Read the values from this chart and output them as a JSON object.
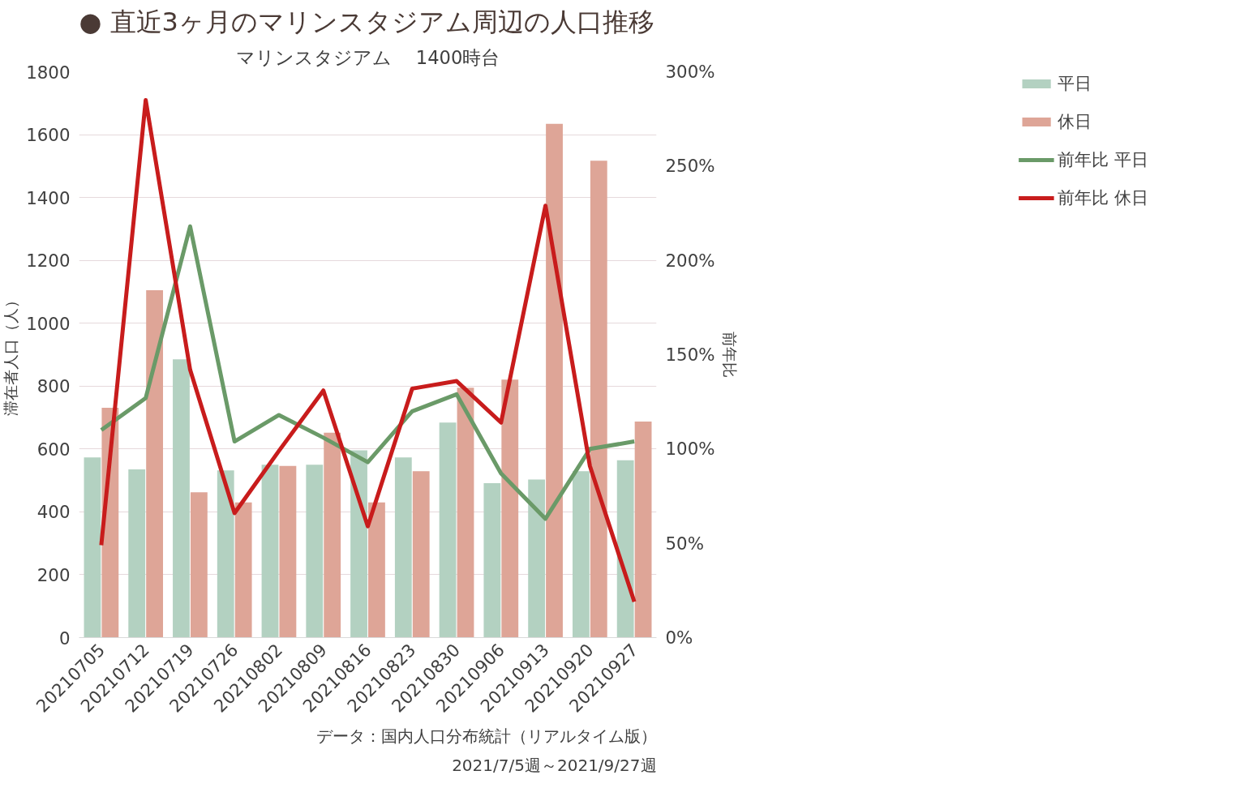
{
  "chart_data": {
    "type": "bar",
    "title": "● 直近3ヶ月のマリンスタジアム周辺の人口推移",
    "subtitle": "マリンスタジアム　 1400時台",
    "ylabel": "滞在者人口（人）",
    "y2label": "前年比",
    "categories": [
      "20210705",
      "20210712",
      "20210719",
      "20210726",
      "20210802",
      "20210809",
      "20210816",
      "20210823",
      "20210830",
      "20210906",
      "20210913",
      "20210920",
      "20210927"
    ],
    "series": [
      {
        "name": "平日",
        "color": "#b3d1c1",
        "values": [
          573,
          535,
          885,
          532,
          550,
          550,
          596,
          573,
          684,
          491,
          503,
          529,
          564
        ]
      },
      {
        "name": "休日",
        "color": "#dea597",
        "values": [
          731,
          1105,
          462,
          430,
          546,
          652,
          430,
          529,
          795,
          821,
          1634,
          1517,
          687
        ]
      },
      {
        "name": "前年比 平日",
        "type": "line",
        "axis": "y2",
        "color": "#6a9a68",
        "values": [
          110,
          127,
          218,
          104,
          118,
          106,
          93,
          120,
          129,
          87,
          63,
          100,
          104
        ]
      },
      {
        "name": "前年比 休日",
        "type": "line",
        "axis": "y2",
        "color": "#c81c1c",
        "values": [
          49,
          285,
          142,
          66,
          99,
          131,
          59,
          132,
          136,
          114,
          229,
          91,
          19
        ]
      }
    ],
    "ylim": [
      0,
      1800
    ],
    "yticks": [
      0,
      200,
      400,
      600,
      800,
      1000,
      1200,
      1400,
      1600,
      1800
    ],
    "y2lim": [
      0,
      300
    ],
    "y2ticks": [
      {
        "value": 0,
        "label": "0%"
      },
      {
        "value": 50,
        "label": "50%"
      },
      {
        "value": 100,
        "label": "100%"
      },
      {
        "value": 150,
        "label": "150%"
      },
      {
        "value": 200,
        "label": "200%"
      },
      {
        "value": 250,
        "label": "250%"
      },
      {
        "value": 300,
        "label": "300%"
      }
    ],
    "grid": "y",
    "legend": "right",
    "line_style": "solid",
    "marker": "none",
    "annotations": [
      "データ：国内人口分布統計（リアルタイム版）",
      "2021/7/5週～2021/9/27週"
    ]
  }
}
